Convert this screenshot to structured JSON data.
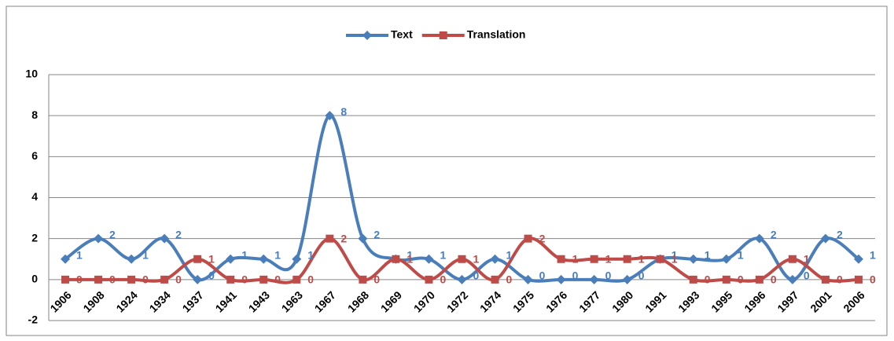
{
  "chart_data": {
    "type": "line",
    "categories": [
      "1906",
      "1908",
      "1924",
      "1934",
      "1937",
      "1941",
      "1943",
      "1963",
      "1967",
      "1968",
      "1969",
      "1970",
      "1972",
      "1974",
      "1975",
      "1976",
      "1977",
      "1980",
      "1991",
      "1993",
      "1995",
      "1996",
      "1997",
      "2001",
      "2006"
    ],
    "series": [
      {
        "name": "Text",
        "color": "#4a7ebb",
        "marker": "diamond",
        "values": [
          1,
          2,
          1,
          2,
          0,
          1,
          1,
          1,
          8,
          2,
          1,
          1,
          0,
          1,
          0,
          0,
          0,
          0,
          1,
          1,
          1,
          2,
          0,
          2,
          1
        ]
      },
      {
        "name": "Translation",
        "color": "#be4b48",
        "marker": "square",
        "values": [
          0,
          0,
          0,
          0,
          1,
          0,
          0,
          0,
          2,
          0,
          1,
          0,
          1,
          0,
          2,
          1,
          1,
          1,
          1,
          0,
          0,
          0,
          1,
          0,
          0
        ]
      }
    ],
    "ylim": [
      -2,
      10
    ],
    "yticks": [
      -2,
      0,
      2,
      4,
      6,
      8,
      10
    ],
    "grid": true,
    "smooth": true,
    "legend": "top"
  }
}
